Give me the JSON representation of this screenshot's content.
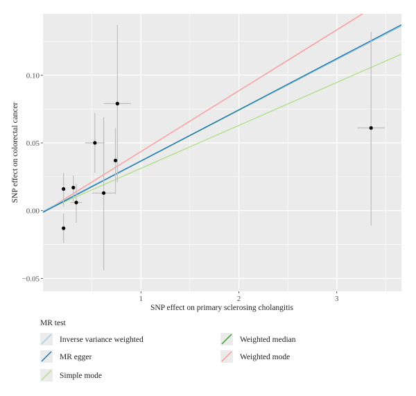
{
  "chart_data": {
    "type": "scatter",
    "xlabel": "SNP effect on primary sclerosing cholangitis",
    "ylabel": "SNP effect on colorectal cancer",
    "xlim": [
      0,
      3.66
    ],
    "ylim": [
      -0.0595,
      0.1452
    ],
    "x_ticks": [
      1,
      2,
      3
    ],
    "x_tick_labels": [
      "1",
      "2",
      "3"
    ],
    "y_ticks": [
      -0.05,
      0.0,
      0.05,
      0.1
    ],
    "y_tick_labels": [
      "−0.05",
      "0.00",
      "0.05",
      "0.10"
    ],
    "grid": true,
    "points": [
      {
        "x": 0.21,
        "y": -0.013,
        "xerr": 0.0,
        "ylo": -0.024,
        "yhi": -0.002
      },
      {
        "x": 0.21,
        "y": 0.016,
        "xerr": 0.0,
        "ylo": 0.003,
        "yhi": 0.028
      },
      {
        "x": 0.31,
        "y": 0.017,
        "xerr": 0.0,
        "ylo": 0.007,
        "yhi": 0.026
      },
      {
        "x": 0.34,
        "y": 0.006,
        "xerr": 0.06,
        "ylo": -0.009,
        "yhi": 0.02
      },
      {
        "x": 0.53,
        "y": 0.05,
        "xerr": 0.1,
        "ylo": 0.028,
        "yhi": 0.072
      },
      {
        "x": 0.62,
        "y": 0.013,
        "xerr": 0.12,
        "ylo": -0.044,
        "yhi": 0.069
      },
      {
        "x": 0.74,
        "y": 0.037,
        "xerr": 0.0,
        "ylo": 0.012,
        "yhi": 0.061
      },
      {
        "x": 0.76,
        "y": 0.079,
        "xerr": 0.14,
        "ylo": 0.021,
        "yhi": 0.137
      },
      {
        "x": 3.35,
        "y": 0.061,
        "xerr": 0.14,
        "ylo": -0.011,
        "yhi": 0.132
      }
    ],
    "lines": [
      {
        "name": "Inverse variance weighted",
        "color": "#a6cee3",
        "intercept": -0.0005,
        "slope": 0.0374
      },
      {
        "name": "MR egger",
        "color": "#1f78b4",
        "intercept": -0.0012,
        "slope": 0.0378
      },
      {
        "name": "Simple mode",
        "color": "#b2df8a",
        "intercept": -0.0005,
        "slope": 0.0317
      },
      {
        "name": "Weighted median",
        "color": "#33a02c",
        "intercept": -0.0009,
        "slope": 0.0375
      },
      {
        "name": "Weighted mode",
        "color": "#fb9a99",
        "intercept": -0.0013,
        "slope": 0.0449
      }
    ],
    "legend": {
      "title": "MR test",
      "placement": "bottom",
      "entries": [
        {
          "label": "Inverse variance weighted",
          "color": "#a6cee3"
        },
        {
          "label": "Weighted median",
          "color": "#33a02c"
        },
        {
          "label": "MR egger",
          "color": "#1f78b4"
        },
        {
          "label": "Weighted mode",
          "color": "#fb9a99"
        },
        {
          "label": "Simple mode",
          "color": "#b2df8a"
        }
      ]
    },
    "colors": {
      "panel": "#ebebeb",
      "grid": "#ffffff",
      "point": "#000000",
      "errorbar": "#bdbdbd"
    }
  }
}
